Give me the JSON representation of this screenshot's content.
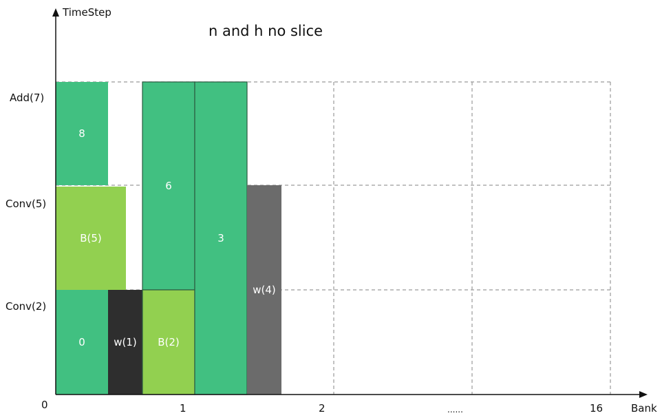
{
  "title": "n and h no slice",
  "axes": {
    "y_label": "TimeStep",
    "x_label": "Bank",
    "origin": "0",
    "y_ticks": [
      "Add(7)",
      "Conv(5)",
      "Conv(2)"
    ],
    "x_ticks": [
      "1",
      "2",
      "......",
      "16"
    ]
  },
  "blocks": [
    {
      "id": "block-8",
      "label": "8",
      "color": "#41c081"
    },
    {
      "id": "block-b5",
      "label": "B(5)",
      "color": "#92d050"
    },
    {
      "id": "block-0",
      "label": "0",
      "color": "#41c081"
    },
    {
      "id": "block-w1",
      "label": "w(1)",
      "color": "#2e2e2e"
    },
    {
      "id": "block-6",
      "label": "6",
      "color": "#41c081"
    },
    {
      "id": "block-b2",
      "label": "B(2)",
      "color": "#92d050"
    },
    {
      "id": "block-3",
      "label": "3",
      "color": "#41c081"
    },
    {
      "id": "block-w4",
      "label": "w(4)",
      "color": "#6b6b6b"
    }
  ]
}
